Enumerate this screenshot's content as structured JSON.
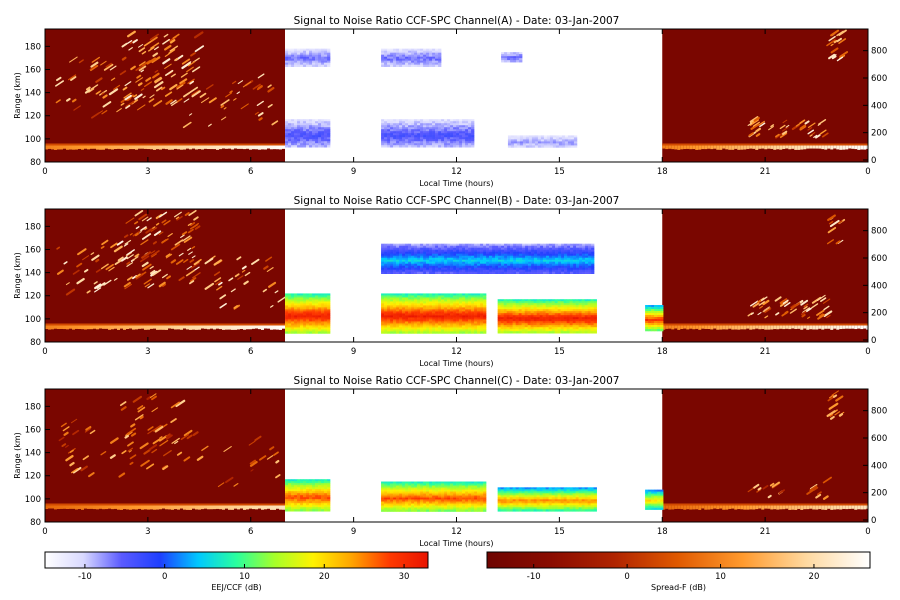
{
  "colors": {
    "background": "#ffffff",
    "axis": "#000000",
    "spreadf_bg": "#7a0600",
    "eej_colormap": [
      "#ffffff",
      "#d9d9ff",
      "#5a5aff",
      "#1f3fff",
      "#00c8ff",
      "#29ff9e",
      "#a6ff29",
      "#fff200",
      "#ffa500",
      "#ff3a00",
      "#e81400"
    ],
    "spreadf_colormap": [
      "#6e0400",
      "#8a0c00",
      "#b02400",
      "#e05a00",
      "#ff9a2e",
      "#ffd9a0",
      "#ffffff"
    ]
  },
  "chart_data": [
    {
      "type": "heatmap",
      "title": "Signal to Noise Ratio CCF-SPC Channel(A) - Date: 03-Jan-2007",
      "xlabel": "Local Time (hours)",
      "ylabel": "Range (km)",
      "xlim": [
        0,
        24
      ],
      "ylim": [
        80,
        195
      ],
      "xticks": [
        "0",
        "3",
        "6",
        "9",
        "12",
        "15",
        "18",
        "21",
        "0"
      ],
      "yticks": [
        "80",
        "100",
        "120",
        "140",
        "160",
        "180"
      ],
      "y2ticks": [
        "0",
        "200",
        "400",
        "600",
        "800"
      ],
      "segments": [
        {
          "name": "Spread-F",
          "x": [
            0,
            7
          ]
        },
        {
          "name": "EEJ/CCF",
          "x": [
            7,
            18
          ]
        },
        {
          "name": "Spread-F",
          "x": [
            18,
            24
          ]
        }
      ],
      "eej_echo_regions": [
        {
          "x": [
            7,
            8.3
          ],
          "y": [
            93,
            117
          ],
          "snr_db": [
            -12,
            -4
          ]
        },
        {
          "x": [
            7,
            8.3
          ],
          "y": [
            164,
            178
          ],
          "snr_db": [
            -12,
            -6
          ]
        },
        {
          "x": [
            9.8,
            12.5
          ],
          "y": [
            93,
            117
          ],
          "snr_db": [
            -12,
            -4
          ]
        },
        {
          "x": [
            9.8,
            11.5
          ],
          "y": [
            164,
            178
          ],
          "snr_db": [
            -12,
            -6
          ]
        },
        {
          "x": [
            13.3,
            13.9
          ],
          "y": [
            168,
            175
          ],
          "snr_db": [
            -10,
            -6
          ]
        },
        {
          "x": [
            13.5,
            15.5
          ],
          "y": [
            93,
            103
          ],
          "snr_db": [
            -12,
            -8
          ]
        }
      ]
    },
    {
      "type": "heatmap",
      "title": "Signal to Noise Ratio CCF-SPC Channel(B) - Date: 03-Jan-2007",
      "xlabel": "Local Time (hours)",
      "ylabel": "Range (km)",
      "xlim": [
        0,
        24
      ],
      "ylim": [
        80,
        195
      ],
      "xticks": [
        "0",
        "3",
        "6",
        "9",
        "12",
        "15",
        "18",
        "21",
        "0"
      ],
      "yticks": [
        "80",
        "100",
        "120",
        "140",
        "160",
        "180"
      ],
      "y2ticks": [
        "0",
        "200",
        "400",
        "600",
        "800"
      ],
      "segments": [
        {
          "name": "Spread-F",
          "x": [
            0,
            7
          ]
        },
        {
          "name": "EEJ/CCF",
          "x": [
            7,
            18
          ]
        },
        {
          "name": "Spread-F",
          "x": [
            18,
            24
          ]
        }
      ],
      "eej_echo_regions": [
        {
          "x": [
            7,
            8.3
          ],
          "y": [
            88,
            122
          ],
          "snr_db": [
            5,
            32
          ]
        },
        {
          "x": [
            9.8,
            12.8
          ],
          "y": [
            88,
            122
          ],
          "snr_db": [
            5,
            32
          ]
        },
        {
          "x": [
            13.2,
            16
          ],
          "y": [
            88,
            117
          ],
          "snr_db": [
            5,
            32
          ]
        },
        {
          "x": [
            9.8,
            16
          ],
          "y": [
            140,
            165
          ],
          "snr_db": [
            -10,
            5
          ]
        },
        {
          "x": [
            17.5,
            18
          ],
          "y": [
            90,
            112
          ],
          "snr_db": [
            0,
            30
          ]
        }
      ]
    },
    {
      "type": "heatmap",
      "title": "Signal to Noise Ratio CCF-SPC Channel(C) - Date: 03-Jan-2007",
      "xlabel": "Local Time (hours)",
      "ylabel": "Range (km)",
      "xlim": [
        0,
        24
      ],
      "ylim": [
        80,
        195
      ],
      "xticks": [
        "0",
        "3",
        "6",
        "9",
        "12",
        "15",
        "18",
        "21",
        "0"
      ],
      "yticks": [
        "80",
        "100",
        "120",
        "140",
        "160",
        "180"
      ],
      "y2ticks": [
        "0",
        "200",
        "400",
        "600",
        "800"
      ],
      "segments": [
        {
          "name": "Spread-F",
          "x": [
            0,
            7
          ]
        },
        {
          "name": "EEJ/CCF",
          "x": [
            7,
            18
          ]
        },
        {
          "name": "Spread-F",
          "x": [
            18,
            24
          ]
        }
      ],
      "eej_echo_regions": [
        {
          "x": [
            7,
            8.3
          ],
          "y": [
            90,
            117
          ],
          "snr_db": [
            5,
            28
          ]
        },
        {
          "x": [
            9.8,
            12.8
          ],
          "y": [
            90,
            115
          ],
          "snr_db": [
            5,
            28
          ]
        },
        {
          "x": [
            13.2,
            16
          ],
          "y": [
            90,
            110
          ],
          "snr_db": [
            0,
            25
          ]
        },
        {
          "x": [
            17.5,
            18
          ],
          "y": [
            92,
            108
          ],
          "snr_db": [
            0,
            20
          ]
        }
      ]
    }
  ],
  "colorbars": [
    {
      "label": "EEJ/CCF (dB)",
      "range": [
        -15,
        33
      ],
      "ticks": [
        "-10",
        "0",
        "10",
        "20",
        "30"
      ]
    },
    {
      "label": "Spread-F (dB)",
      "range": [
        -15,
        26
      ],
      "ticks": [
        "-10",
        "0",
        "10",
        "20"
      ]
    }
  ]
}
